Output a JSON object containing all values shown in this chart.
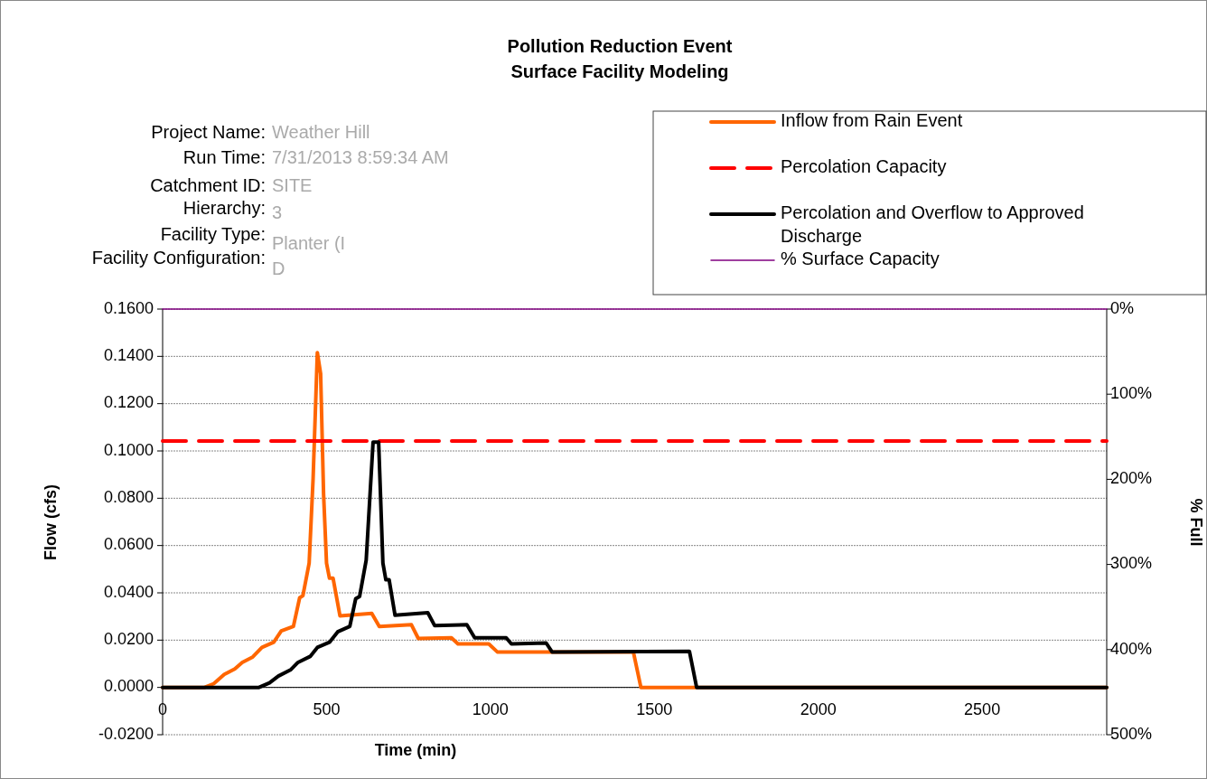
{
  "chart_data": {
    "type": "line",
    "title": "Pollution Reduction Event",
    "subtitle": "Surface Facility Modeling",
    "xlabel": "Time (min)",
    "ylabel": "Flow (cfs)",
    "y2label": "% Full",
    "annotations": [
      "Project Name:",
      "Weather Hill",
      "Run Time:",
      "7/31/2013 8:59:34 AM",
      "Catchment ID:",
      "SITE",
      "Hierarchy:",
      "3",
      "Facility Type:",
      "Planter (I",
      "Facility Configuration:",
      "D"
    ],
    "xlim": [
      0,
      2880
    ],
    "xticks": [
      0,
      500,
      1000,
      1500,
      2000,
      2500
    ],
    "ylim": [
      -0.02,
      0.16
    ],
    "yticks": [
      {
        "value": -0.02,
        "label": "-0.0200"
      },
      {
        "value": 0,
        "label": "0.0000"
      },
      {
        "value": 0.02,
        "label": "0.0200"
      },
      {
        "value": 0.04,
        "label": "0.0400"
      },
      {
        "value": 0.06,
        "label": "0.0600"
      },
      {
        "value": 0.08,
        "label": "0.0800"
      },
      {
        "value": 0.1,
        "label": "0.1000"
      },
      {
        "value": 0.12,
        "label": "0.1200"
      },
      {
        "value": 0.14,
        "label": "0.1400"
      },
      {
        "value": 0.16,
        "label": "0.1600"
      }
    ],
    "y2lim": [
      500,
      0
    ],
    "y2ticks": [
      {
        "value": 0,
        "label": "0%"
      },
      {
        "value": 100,
        "label": "100%"
      },
      {
        "value": 200,
        "label": "200%"
      },
      {
        "value": 300,
        "label": "300%"
      },
      {
        "value": 400,
        "label": "400%"
      },
      {
        "value": 500,
        "label": "500%"
      }
    ],
    "grid": "y",
    "legend": "top right",
    "marker": "none",
    "series": [
      {
        "name": "Inflow from Rain Event",
        "color": "#ff6600",
        "line_style": "solid",
        "x": [
          0,
          128,
          156,
          188,
          220,
          243,
          275,
          303,
          339,
          362,
          399,
          418,
          428,
          447,
          459,
          472,
          482,
          491,
          500,
          509,
          520,
          541,
          638,
          661,
          759,
          780,
          881,
          901,
          995,
          1021,
          1436,
          1459,
          2880
        ],
        "values": [
          0,
          0,
          0.0016,
          0.0055,
          0.0078,
          0.0106,
          0.0129,
          0.0169,
          0.0191,
          0.0239,
          0.0258,
          0.0379,
          0.0388,
          0.0526,
          0.0882,
          0.1416,
          0.1327,
          0.0818,
          0.0526,
          0.0462,
          0.0462,
          0.0303,
          0.0313,
          0.0258,
          0.0265,
          0.0207,
          0.021,
          0.0184,
          0.0184,
          0.015,
          0.015,
          0,
          0
        ]
      },
      {
        "name": "Percolation Capacity",
        "color": "#ff0000",
        "line_style": "dashed",
        "x": [
          0,
          2880
        ],
        "values": [
          0.1042,
          0.1042
        ]
      },
      {
        "name": "Percolation and Overflow to Approved Discharge",
        "color": "#000000",
        "line_style": "solid",
        "x": [
          0,
          294,
          326,
          353,
          390,
          413,
          450,
          472,
          509,
          534,
          571,
          589,
          601,
          621,
          642,
          659,
          672,
          681,
          691,
          709,
          809,
          830,
          928,
          952,
          1048,
          1064,
          1170,
          1188,
          1607,
          1629,
          2880
        ],
        "values": [
          0,
          0,
          0.0019,
          0.0048,
          0.0074,
          0.0106,
          0.0131,
          0.0169,
          0.0191,
          0.0235,
          0.0258,
          0.0375,
          0.0385,
          0.0538,
          0.1037,
          0.1037,
          0.0526,
          0.0455,
          0.0455,
          0.0305,
          0.0316,
          0.0261,
          0.0265,
          0.021,
          0.021,
          0.0184,
          0.0188,
          0.015,
          0.0153,
          0,
          0
        ]
      },
      {
        "name": "% Surface Capacity",
        "color": "#800080",
        "line_style": "solid",
        "axis": "y2",
        "x": [
          0,
          2880
        ],
        "values": [
          0,
          0
        ]
      }
    ]
  }
}
